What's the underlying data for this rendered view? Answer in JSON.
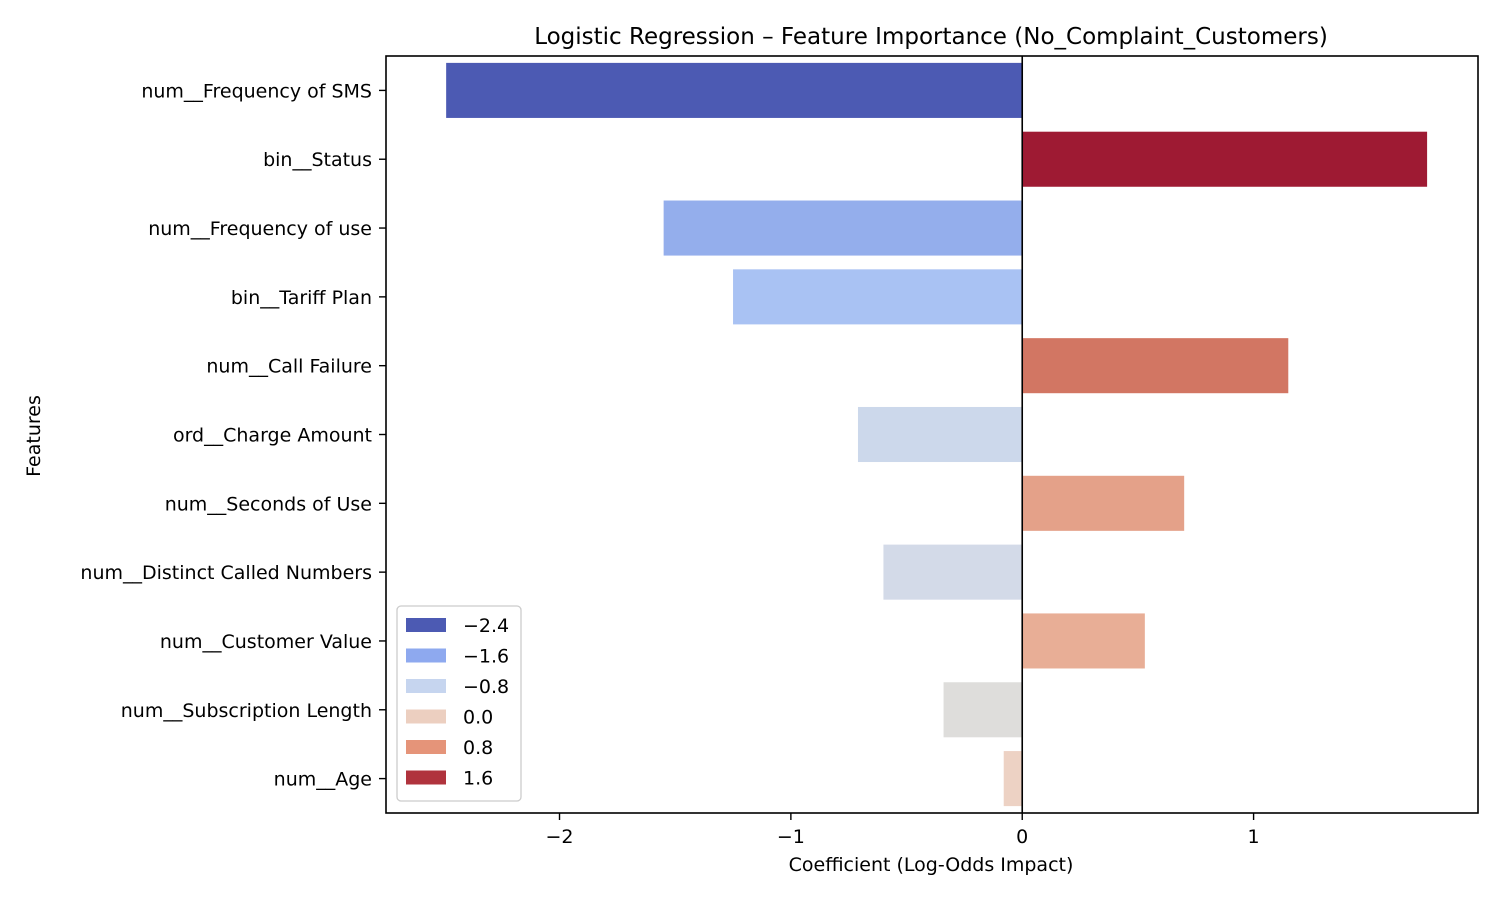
{
  "chart_data": {
    "type": "bar",
    "orientation": "horizontal",
    "title": "Logistic Regression – Feature Importance (No_Complaint_Customers)",
    "xlabel": "Coefficient (Log-Odds Impact)",
    "ylabel": "Features",
    "xlim": [
      -2.75,
      1.97
    ],
    "xticks": [
      {
        "value": -2,
        "label": "−2"
      },
      {
        "value": -1,
        "label": "−1"
      },
      {
        "value": 0,
        "label": "0"
      },
      {
        "value": 1,
        "label": "1"
      }
    ],
    "grid": false,
    "categories": [
      "num__Frequency of SMS",
      "bin__Status",
      "num__Frequency of use",
      "bin__Tariff Plan",
      "num__Call Failure",
      "ord__Charge Amount",
      "num__Seconds of Use",
      "num__Distinct Called Numbers",
      "num__Customer Value",
      "num__Subscription Length",
      "num__Age"
    ],
    "values": [
      -2.49,
      1.75,
      -1.55,
      -1.25,
      1.15,
      -0.71,
      0.7,
      -0.6,
      0.53,
      -0.34,
      -0.08
    ],
    "bar_colors": [
      "#4c5ab3",
      "#9e1a33",
      "#94aeec",
      "#a9c2f3",
      "#d27663",
      "#ccd8eb",
      "#e4a189",
      "#d3dae8",
      "#e8ae96",
      "#dedddb",
      "#edd2c4"
    ],
    "zero_line": true,
    "legend": {
      "placement": "lower-left",
      "entries": [
        {
          "label": "−2.4",
          "color": "#4c5ab3"
        },
        {
          "label": "−1.6",
          "color": "#8ea9ef"
        },
        {
          "label": "−0.8",
          "color": "#c6d5ef"
        },
        {
          "label": "0.0",
          "color": "#eccfc0"
        },
        {
          "label": "0.8",
          "color": "#e59479"
        },
        {
          "label": "1.6",
          "color": "#b0333d"
        }
      ]
    }
  }
}
